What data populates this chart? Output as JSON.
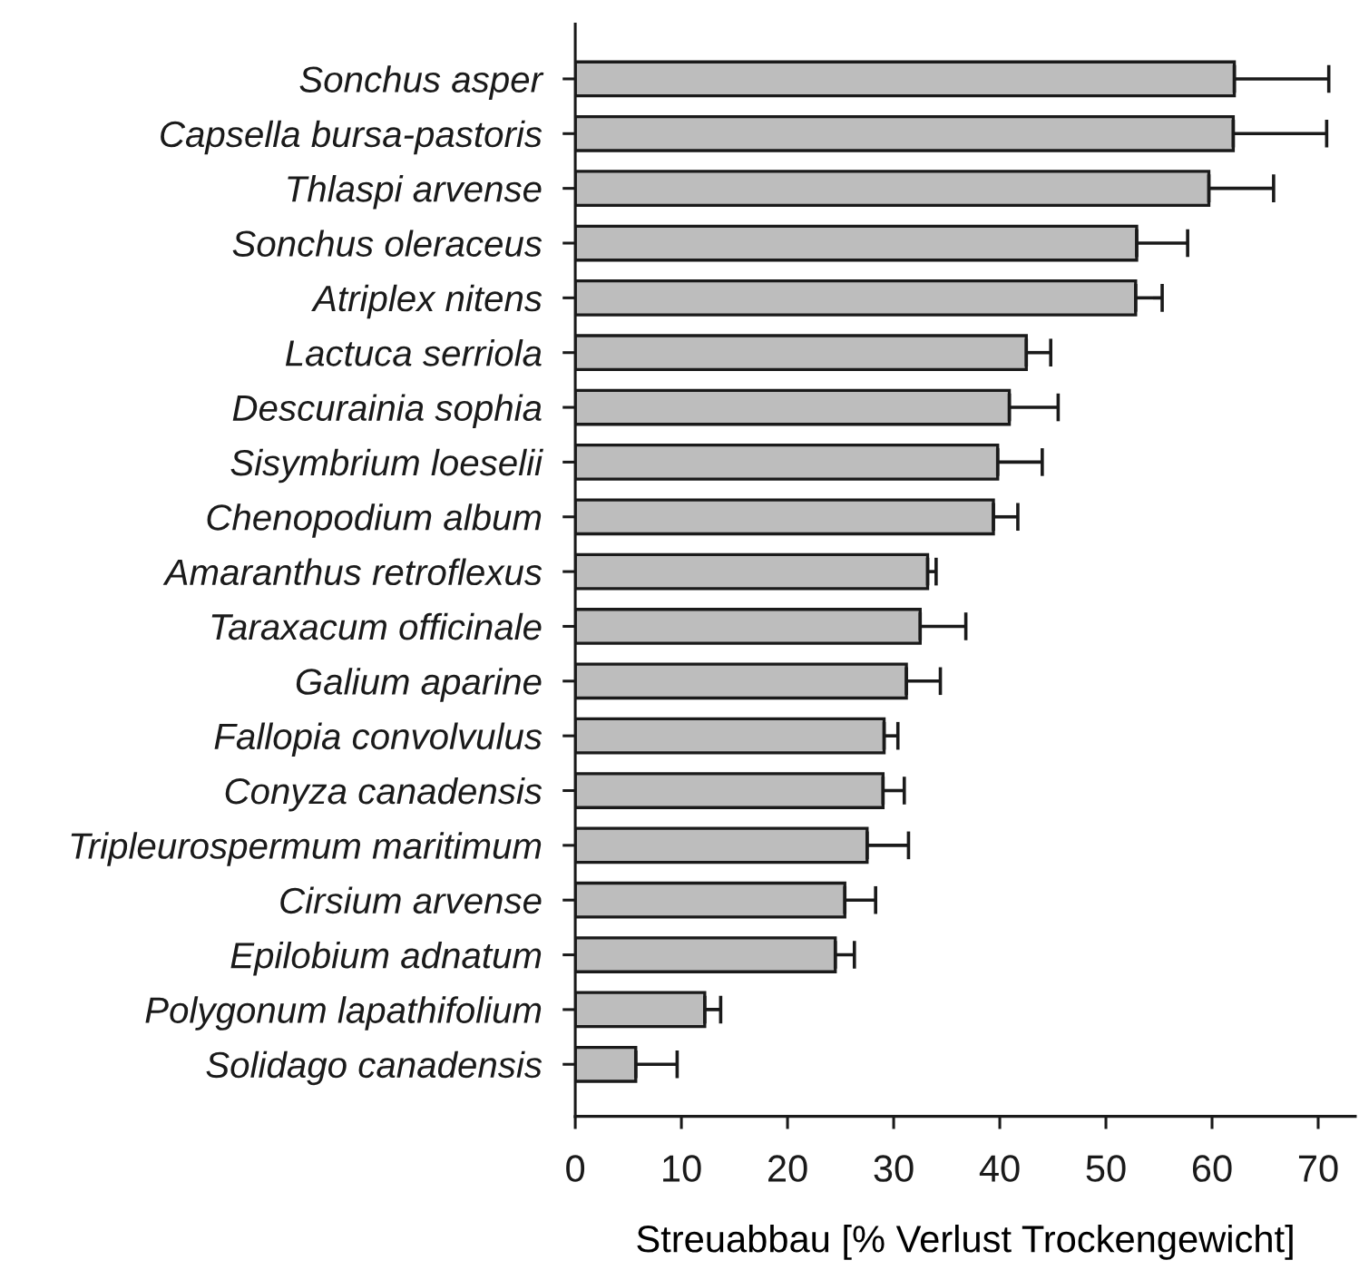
{
  "chart_data": {
    "type": "bar",
    "orientation": "horizontal",
    "categories": [
      "Sonchus asper",
      "Capsella bursa-pastoris",
      "Thlaspi arvense",
      "Sonchus oleraceus",
      "Atriplex nitens",
      "Lactuca serriola",
      "Descurainia sophia",
      "Sisymbrium loeselii",
      "Chenopodium album",
      "Amaranthus retroflexus",
      "Taraxacum officinale",
      "Galium aparine",
      "Fallopia convolvulus",
      "Conyza canadensis",
      "Tripleurospermum maritimum",
      "Cirsium arvense",
      "Epilobium adnatum",
      "Polygonum lapathifolium",
      "Solidago canadensis"
    ],
    "values": [
      62.1,
      62.0,
      59.7,
      52.9,
      52.8,
      42.5,
      40.9,
      39.8,
      39.4,
      33.2,
      32.5,
      31.2,
      29.1,
      29.0,
      27.5,
      25.4,
      24.5,
      12.2,
      5.7
    ],
    "errors": [
      [
        62.1,
        71.0
      ],
      [
        62.0,
        70.8
      ],
      [
        59.7,
        65.8
      ],
      [
        52.9,
        57.7
      ],
      [
        52.8,
        55.3
      ],
      [
        42.5,
        44.8
      ],
      [
        40.9,
        45.5
      ],
      [
        39.8,
        44.0
      ],
      [
        39.4,
        41.7
      ],
      [
        33.2,
        34.0
      ],
      [
        32.5,
        36.8
      ],
      [
        31.2,
        34.4
      ],
      [
        29.1,
        30.4
      ],
      [
        29.0,
        31.0
      ],
      [
        27.5,
        31.4
      ],
      [
        25.4,
        28.3
      ],
      [
        24.5,
        26.3
      ],
      [
        12.2,
        13.7
      ],
      [
        5.7,
        9.6
      ]
    ],
    "color": "#bdbdbd",
    "xlabel": "Streuabbau [% Verlust Trockengewicht]",
    "xlim": [
      0,
      73.5
    ],
    "xticks": [
      0,
      10,
      20,
      30,
      40,
      50,
      60,
      70
    ]
  }
}
